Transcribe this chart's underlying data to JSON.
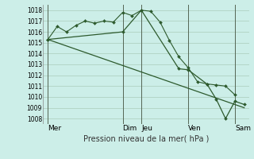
{
  "background_color": "#cceee8",
  "grid_color": "#aaccbb",
  "line_color": "#2d5a2d",
  "xlabel": "Pression niveau de la mer( hPa )",
  "ylim": [
    1007.5,
    1018.5
  ],
  "yticks": [
    1008,
    1009,
    1010,
    1011,
    1012,
    1013,
    1014,
    1015,
    1016,
    1017,
    1018
  ],
  "day_labels": [
    "Mer",
    "Dim",
    "Jeu",
    "Ven",
    "Sam"
  ],
  "day_positions": [
    0,
    8,
    10,
    15,
    20
  ],
  "xlim": [
    -0.5,
    21.5
  ],
  "line1_x": [
    0,
    1,
    2,
    3,
    4,
    5,
    6,
    7,
    8,
    9,
    10,
    11,
    12,
    13,
    14,
    15,
    16,
    17,
    18,
    19,
    20
  ],
  "line1_y": [
    1015.3,
    1016.5,
    1016.0,
    1016.6,
    1017.0,
    1016.8,
    1017.0,
    1016.9,
    1017.8,
    1017.5,
    1018.0,
    1017.9,
    1016.9,
    1015.2,
    1013.7,
    1012.7,
    1011.4,
    1011.2,
    1011.1,
    1011.0,
    1010.2
  ],
  "line2_x": [
    0,
    8,
    10,
    14,
    15,
    17,
    18,
    19,
    20,
    21
  ],
  "line2_y": [
    1015.3,
    1016.0,
    1018.0,
    1012.6,
    1012.5,
    1011.2,
    1009.8,
    1008.0,
    1009.6,
    1009.3
  ],
  "line3_x": [
    0,
    21
  ],
  "line3_y": [
    1015.3,
    1009.0
  ],
  "vline_color": "#556655",
  "ylabel_fontsize": 5.5,
  "xlabel_fontsize": 7.0,
  "xtick_fontsize": 6.5,
  "marker": "D",
  "markersize": 2.0
}
